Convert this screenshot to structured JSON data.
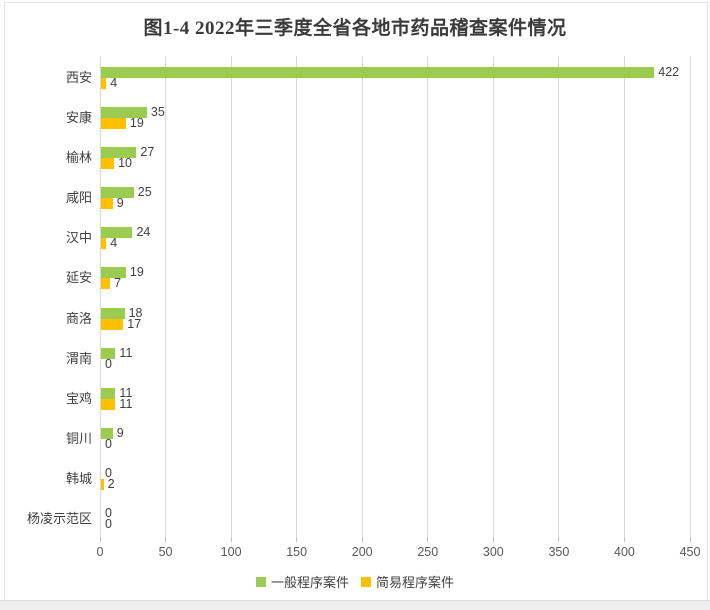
{
  "chart_data": {
    "type": "bar",
    "orientation": "horizontal",
    "title": "图1-4 2022年三季度全省各地市药品稽查案件情况",
    "categories": [
      "西安",
      "安康",
      "榆林",
      "咸阳",
      "汉中",
      "延安",
      "商洛",
      "渭南",
      "宝鸡",
      "铜川",
      "韩城",
      "杨凌示范区"
    ],
    "series": [
      {
        "name": "一般程序案件",
        "color": "#9ccb52",
        "values": [
          422,
          35,
          27,
          25,
          24,
          19,
          18,
          11,
          11,
          9,
          0,
          0
        ]
      },
      {
        "name": "简易程序案件",
        "color": "#ffc000",
        "values": [
          4,
          19,
          10,
          9,
          4,
          7,
          17,
          0,
          11,
          0,
          2,
          0
        ]
      }
    ],
    "x_axis": {
      "min": 0,
      "max": 450,
      "tick_step": 50,
      "ticks": [
        0,
        50,
        100,
        150,
        200,
        250,
        300,
        350,
        400,
        450
      ]
    },
    "grid": true,
    "legend_position": "bottom",
    "data_labels": true
  },
  "colors": {
    "series_general": "#9ccb52",
    "series_simple": "#ffc000",
    "gridline": "#d9d9d9",
    "axis_text": "#595959",
    "label_text": "#404040",
    "title_text": "#3b3b3b"
  }
}
